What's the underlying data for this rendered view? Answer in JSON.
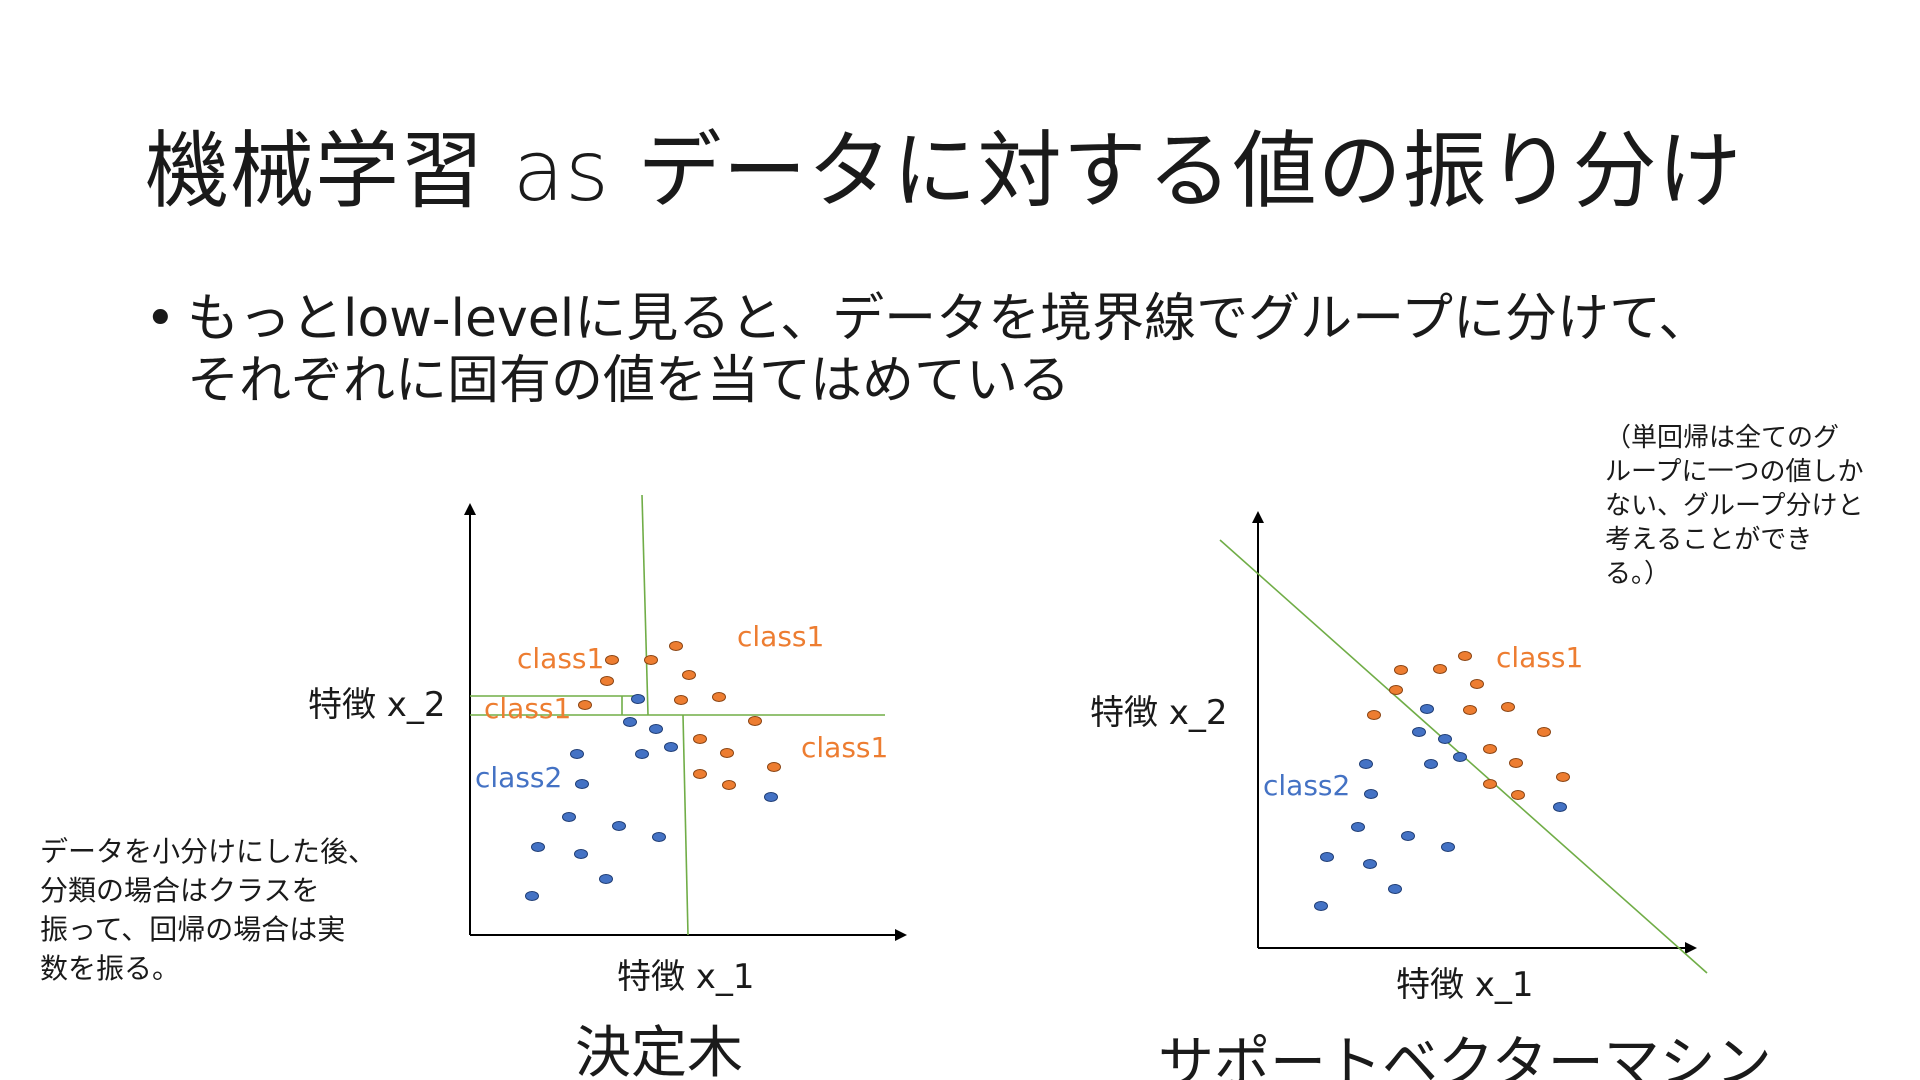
{
  "slide": {
    "title": "機械学習 as データに対する値の振り分け",
    "bullet": {
      "marker": "•",
      "lines": [
        "もっとlow-levelに見ると、データを境界線でグループに分けて、",
        "それぞれに固有の値を当てはめている"
      ]
    },
    "note_left": {
      "lines": [
        "データを小分けにした後、",
        "分類の場合はクラスを",
        "振って、回帰の場合は実",
        "数を振る。"
      ]
    },
    "note_right": {
      "lines": [
        "（単回帰は全てのグ",
        "ループに一つの値しか",
        "ない、グループ分けと",
        "考えることができ",
        "る。）"
      ]
    }
  },
  "colors": {
    "class1": "#ED7D31",
    "class2": "#4472C4",
    "boundary": "#70AD47",
    "axis": "#000000"
  },
  "diagrams": {
    "decision_tree": {
      "caption": "決定木",
      "x_axis_label": "特徴 x_1",
      "y_axis_label": "特徴 x_2",
      "labels": {
        "class1_a": "class1",
        "class1_b": "class1",
        "class1_c": "class1",
        "class1_d": "class1",
        "class2": "class2"
      }
    },
    "svm": {
      "caption": "サポートベクターマシン",
      "x_axis_label": "特徴 x_1",
      "y_axis_label": "特徴 x_2",
      "labels": {
        "class1": "class1",
        "class2": "class2"
      }
    }
  }
}
